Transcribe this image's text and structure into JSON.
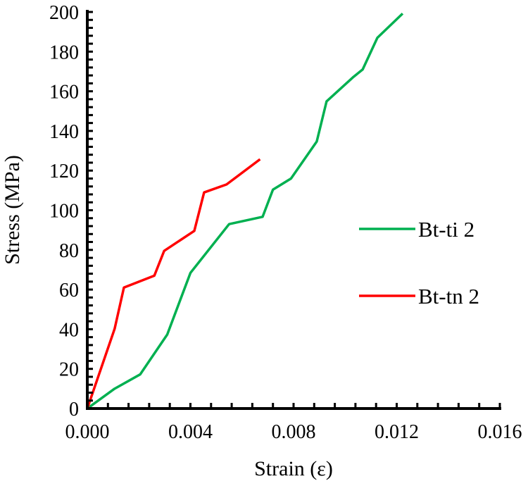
{
  "chart_data": {
    "type": "line",
    "title": "",
    "xlabel": "Strain (ε)",
    "ylabel": "Stress (MPa)",
    "xlim": [
      0,
      0.016
    ],
    "ylim": [
      0,
      200
    ],
    "xticks": [
      "0.000",
      "0.004",
      "0.008",
      "0.012",
      "0.016"
    ],
    "xtick_values": [
      0,
      0.004,
      0.008,
      0.012,
      0.016
    ],
    "yticks": [
      "0",
      "20",
      "40",
      "60",
      "80",
      "100",
      "120",
      "140",
      "160",
      "180",
      "200"
    ],
    "ytick_values": [
      0,
      20,
      40,
      60,
      80,
      100,
      120,
      140,
      160,
      180,
      200
    ],
    "x_minor_step": 0.0008,
    "y_minor_step": 4,
    "grid": false,
    "legend_position": "right",
    "series": [
      {
        "name": "Bt-ti 2",
        "color": "#00b050",
        "x": [
          0,
          0.00106,
          0.00205,
          0.0031,
          0.004,
          0.0055,
          0.0068,
          0.0072,
          0.0079,
          0.0089,
          0.00928,
          0.0103,
          0.01068,
          0.01125,
          0.01223
        ],
        "y": [
          0,
          10,
          17.2,
          37.3,
          68.4,
          93,
          96.7,
          110.4,
          116,
          134.7,
          154.9,
          167,
          171,
          187,
          199.2
        ]
      },
      {
        "name": "Bt-tn 2",
        "color": "#ff0000",
        "x": [
          0,
          0.00106,
          0.00142,
          0.0026,
          0.00298,
          0.00415,
          0.00453,
          0.0054,
          0.0067
        ],
        "y": [
          0,
          40.2,
          61,
          67,
          79.5,
          89.6,
          109,
          113,
          125.7
        ]
      }
    ]
  }
}
